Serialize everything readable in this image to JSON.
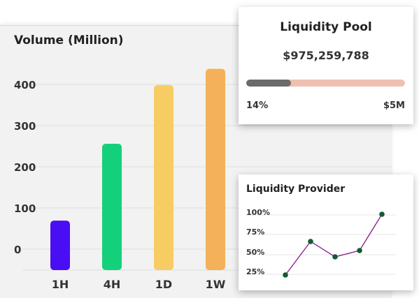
{
  "volume": {
    "title": "Volume (Million)",
    "colors": [
      "#4a0ef5",
      "#15d07a",
      "#f7cd63",
      "#f4b159"
    ],
    "chart_data": {
      "type": "bar",
      "title": "Volume (Million)",
      "categories": [
        "1H",
        "4H",
        "1D",
        "1W"
      ],
      "values": [
        128,
        327,
        479,
        521
      ],
      "ytick_labels": [
        "0",
        "100",
        "200",
        "300",
        "400"
      ],
      "ylim": [
        0,
        533
      ],
      "grid": true
    }
  },
  "pool": {
    "title": "Liquidity Pool",
    "amount": "$975,259,788",
    "progress_percent": 28,
    "min_label": "14%",
    "max_label": "$5M",
    "fill_color": "#6b6b6b",
    "track_color": "#efc0b0"
  },
  "provider": {
    "title": "Liquidity Provider",
    "line_color": "#8b1a8b",
    "point_color": "#0f5c32",
    "chart_data": {
      "type": "line",
      "x": [
        1,
        2,
        3,
        4,
        5
      ],
      "values": [
        12,
        60,
        38,
        47,
        99
      ],
      "ytick_labels": [
        "100%",
        "75%",
        "50%",
        "25%"
      ],
      "ylim": [
        0,
        110
      ],
      "grid": true
    }
  }
}
